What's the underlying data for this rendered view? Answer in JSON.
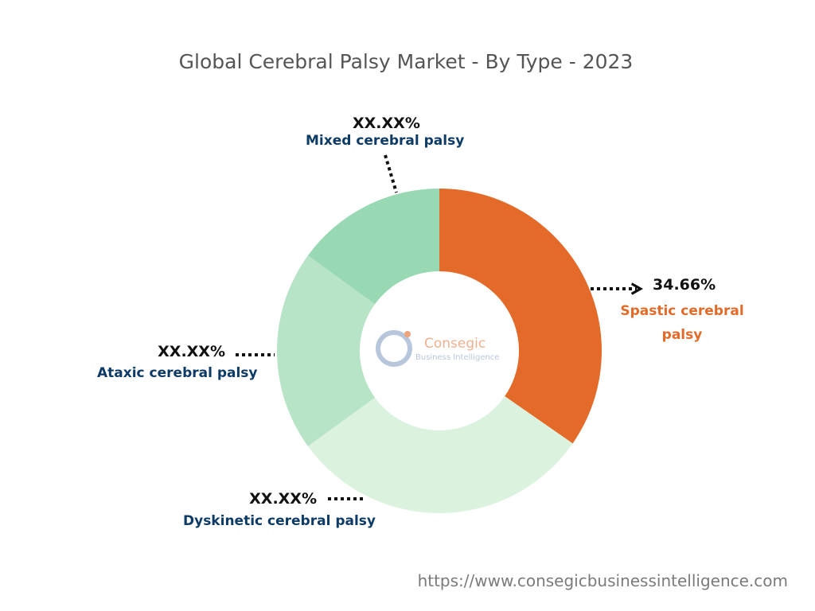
{
  "chart_data": {
    "type": "donut",
    "title": "Global Cerebral Palsy Market - By Type - 2023",
    "categories": [
      "Spastic cerebral palsy",
      "Dyskinetic cerebral palsy",
      "Ataxic cerebral palsy",
      "Mixed cerebral palsy"
    ],
    "values": [
      34.66,
      30.34,
      20,
      15
    ],
    "value_labels": [
      "34.66%",
      "XX.XX%",
      "XX.XX%",
      "XX.XX%"
    ],
    "colors": [
      "#e36a28",
      "#daf2de",
      "#b7e4c7",
      "#98d8b2"
    ],
    "label_colors": [
      "#e36a28",
      "#0d3b66",
      "#0d3b66",
      "#0d3b66"
    ],
    "watermark": [
      "Consegic",
      "Business Intelligence"
    ],
    "source": "https://www.consegicbusinessintelligence.com"
  }
}
